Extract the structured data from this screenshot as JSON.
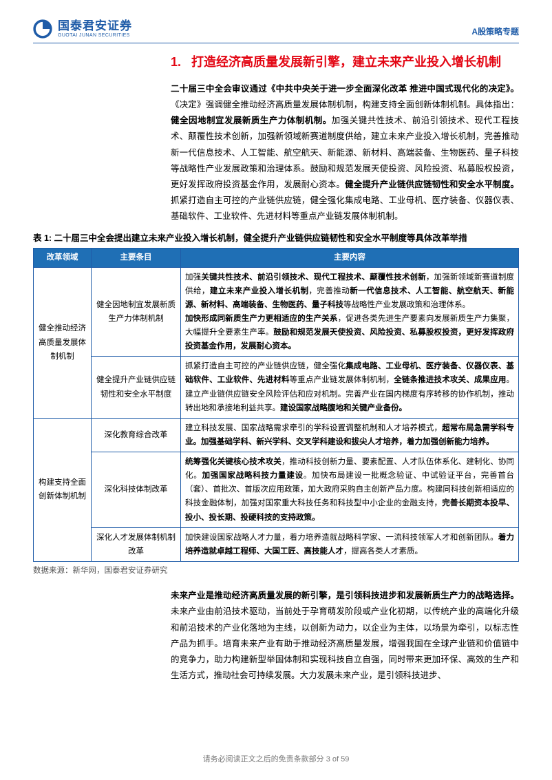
{
  "header": {
    "logo_cn": "国泰君安证券",
    "logo_en": "GUOTAI JUNAN SECURITIES",
    "right_label": "A股策略专题"
  },
  "section": {
    "number": "1.",
    "title": "打造经济高质量发展新引擎，建立未来产业投入增长机制"
  },
  "para1": {
    "lead_bold": "二十届三中全会审议通过《中共中央关于进一步全面深化改革 推进中国式现代化的决定》。",
    "mid": "《决定》强调健全推动经济高质量发展体制机制，构建支持全面创新体制机制。具体指出：",
    "mid_bold": "健全因地制宜发展新质生产力体制机制。",
    "rest": "加强关键共性技术、前沿引领技术、现代工程技术、颠覆性技术创新，加强新领域新赛道制度供给，建立未来产业投入增长机制，完善推动新一代信息技术、人工智能、航空航天、新能源、新材料、高端装备、生物医药、量子科技等战略性产业发展政策和治理体系。鼓励和规范发展天使投资、风险投资、私募股权投资，更好发挥政府投资基金作用，发展耐心资本。",
    "tail_bold": "健全提升产业链供应链韧性和安全水平制度。",
    "tail": "抓紧打造自主可控的产业链供应链，健全强化集成电路、工业母机、医疗装备、仪器仪表、基础软件、工业软件、先进材料等重点产业链发展体制机制。"
  },
  "table": {
    "caption": "表 1:  二十届三中全会提出建立未来产业投入增长机制，健全提升产业链供应链韧性和安全水平制度等具体改革举措",
    "headers": [
      "改革领域",
      "主要条目",
      "主要内容"
    ],
    "rows": [
      {
        "domain": "健全推动经济高质量发展体制机制",
        "rowspan": 2,
        "item": "健全因地制宜发展新质生产力体制机制",
        "content_html": "加强<b>关键共性技术、前沿引领技术、现代工程技术、颠覆性技术创新</b>，加强新领域新赛道制度供给，<b>建立未来产业投入增长机制</b>，完善推动<b>新一代信息技术、人工智能、航空航天、新能源、新材料、高端装备、生物医药、量子科技</b>等战略性产业发展政策和治理体系。<br><b>加快形成同新质生产力更相适应的生产关系</b>，促进各类先进生产要素向发展新质生产力集聚，大幅提升全要素生产率。<b>鼓励和规范发展天使投资、风险投资、私募股权投资，更好发挥政府投资基金作用，发展耐心资本。</b>"
      },
      {
        "item": "健全提升产业链供应链韧性和安全水平制度",
        "content_html": "抓紧打造自主可控的产业链供应链，健全强化<b>集成电路、工业母机、医疗装备、仪器仪表、基础软件、工业软件、先进材料</b>等重点产业链发展体制机制，<b>全链条推进技术攻关、成果应用</b>。建立产业链供应链安全风险评估和应对机制。完善产业在国内梯度有序转移的协作机制，推动转出地和承接地利益共享。<b>建设国家战略腹地和关键产业备份。</b>"
      },
      {
        "domain": "构建支持全面创新体制机制",
        "rowspan": 3,
        "item": "深化教育综合改革",
        "content_html": "建立科技发展、国家战略需求牵引的学科设置调整机制和人才培养模式，<b>超常布局急需学科专业。加强基础学科、新兴学科、交叉学科建设和拔尖人才培养，着力加强创新能力培养。</b>"
      },
      {
        "item": "深化科技体制改革",
        "content_html": "<b>统筹强化关键核心技术攻关</b>，推动科技创新力量、要素配置、人才队伍体系化、建制化、协同化。<b>加强国家战略科技力量建设</b>。加快布局建设一批概念验证、中试验证平台，完善首台（套）、首批次、首版次应用政策，加大政府采购自主创新产品力度。构建同科技创新相适应的科技金融体制，加强对国家重大科技任务和科技型中小企业的金融支持，<b>完善长期资本投早、投小、投长期、投硬科技的支持政策。</b>"
      },
      {
        "item": "深化人才发展体制机制改革",
        "content_html": "加快建设国家战略人才力量，着力培养造就战略科学家、一流科技领军人才和创新团队。<b>着力培养造就卓越工程师、大国工匠、高技能人才</b>，提高各类人才素质。"
      }
    ],
    "colors": {
      "header_bg": "#1f6fb5",
      "header_fg": "#ffffff",
      "border": "#1f5ca8"
    }
  },
  "source": "数据来源：新华网，国泰君安证券研究",
  "para2": {
    "lead_bold": "未来产业是推动经济高质量发展的新引擎，是引领科技进步和发展新质生产力的战略选择。",
    "rest": "未来产业由前沿技术驱动，当前处于孕育萌发阶段或产业化初期，以传统产业的高端化升级和前沿技术的产业化落地为主线，以创新为动力，以企业为主体，以场景为牵引，以标志性产品为抓手。培育未来产业有助于推动经济高质量发展，增强我国在全球产业链和价值链中的竞争力，助力构建新型举国体制和实现科技自立自强，同时带来更加环保、高效的生产和生活方式，推动社会可持续发展。大力发展未来产业，是引领科技进步、"
  },
  "footer": "请务必阅读正文之后的免责条款部分  3 of 59"
}
